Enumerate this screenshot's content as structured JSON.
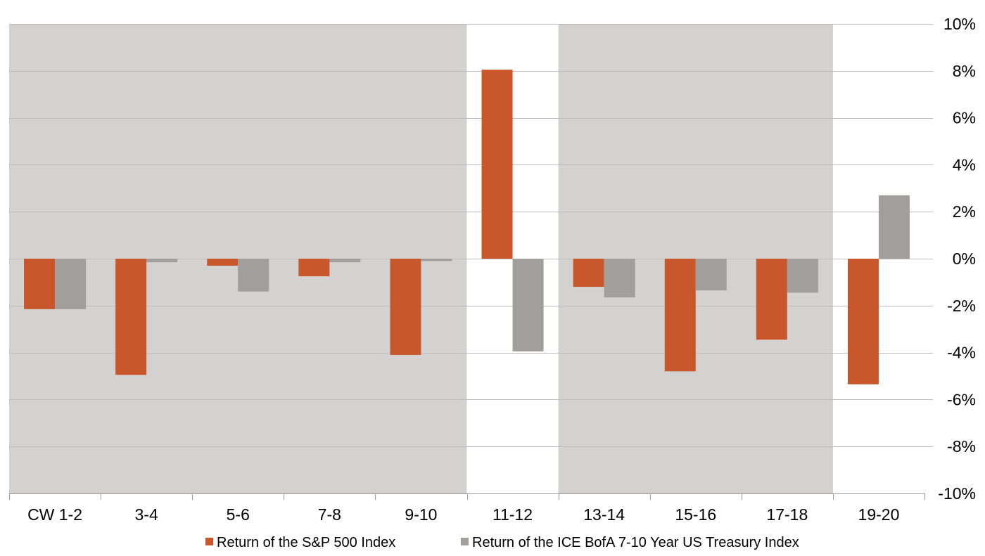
{
  "chart_data": {
    "type": "bar",
    "categories": [
      "CW 1-2",
      "3-4",
      "5-6",
      "7-8",
      "9-10",
      "11-12",
      "13-14",
      "15-16",
      "17-18",
      "19-20"
    ],
    "series": [
      {
        "name": "Return of the S&P 500 Index",
        "color": "#C9572C",
        "values": [
          -2.15,
          -4.95,
          -0.3,
          -0.75,
          -4.1,
          8.05,
          -1.2,
          -4.8,
          -3.45,
          -5.35
        ]
      },
      {
        "name": "Return of the ICE BofA 7-10 Year US Treasury Index",
        "color": "#A19E9B",
        "values": [
          -2.15,
          -0.15,
          -1.4,
          -0.15,
          -0.1,
          -3.95,
          -1.65,
          -1.35,
          -1.45,
          2.7
        ]
      }
    ],
    "ylim": [
      -10,
      10
    ],
    "yticks": [
      10,
      8,
      6,
      4,
      2,
      0,
      -2,
      -4,
      -6,
      -8,
      -10
    ],
    "ytick_labels": [
      "10%",
      "8%",
      "6%",
      "4%",
      "2%",
      "0%",
      "-2%",
      "-4%",
      "-6%",
      "-8%",
      "-10%"
    ],
    "y_axis_side": "right",
    "grid": true,
    "legend_position": "bottom",
    "shaded_category_ranges": [
      [
        0,
        4
      ],
      [
        6,
        8
      ]
    ],
    "shade_color": "#D4D2D0",
    "title": "",
    "xlabel": "",
    "ylabel": ""
  }
}
